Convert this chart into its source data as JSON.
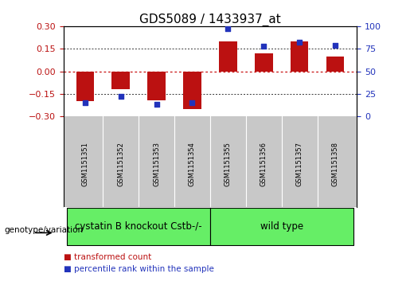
{
  "title": "GDS5089 / 1433937_at",
  "samples": [
    "GSM1151351",
    "GSM1151352",
    "GSM1151353",
    "GSM1151354",
    "GSM1151355",
    "GSM1151356",
    "GSM1151357",
    "GSM1151358"
  ],
  "transformed_count": [
    -0.2,
    -0.12,
    -0.19,
    -0.25,
    0.2,
    0.12,
    0.2,
    0.1
  ],
  "percentile_rank": [
    15,
    22,
    14,
    15,
    97,
    78,
    82,
    79
  ],
  "group1_label": "cystatin B knockout Cstb-/-",
  "group1_samples": [
    0,
    1,
    2,
    3
  ],
  "group2_label": "wild type",
  "group2_samples": [
    4,
    5,
    6,
    7
  ],
  "group_color": "#66EE66",
  "group_row_label": "genotype/variation",
  "ylim_left": [
    -0.3,
    0.3
  ],
  "ylim_right": [
    0,
    100
  ],
  "yticks_left": [
    -0.3,
    -0.15,
    0,
    0.15,
    0.3
  ],
  "yticks_right": [
    0,
    25,
    50,
    75,
    100
  ],
  "bar_color": "#BB1111",
  "dot_color": "#2233BB",
  "hline_zero_color": "#CC2222",
  "grid_color": "#333333",
  "bg_color": "#FFFFFF",
  "sample_bg_color": "#C8C8C8",
  "legend_tc": "transformed count",
  "legend_pr": "percentile rank within the sample",
  "title_fontsize": 11,
  "tick_fontsize": 8,
  "sample_fontsize": 6,
  "group_label_fontsize": 8.5
}
